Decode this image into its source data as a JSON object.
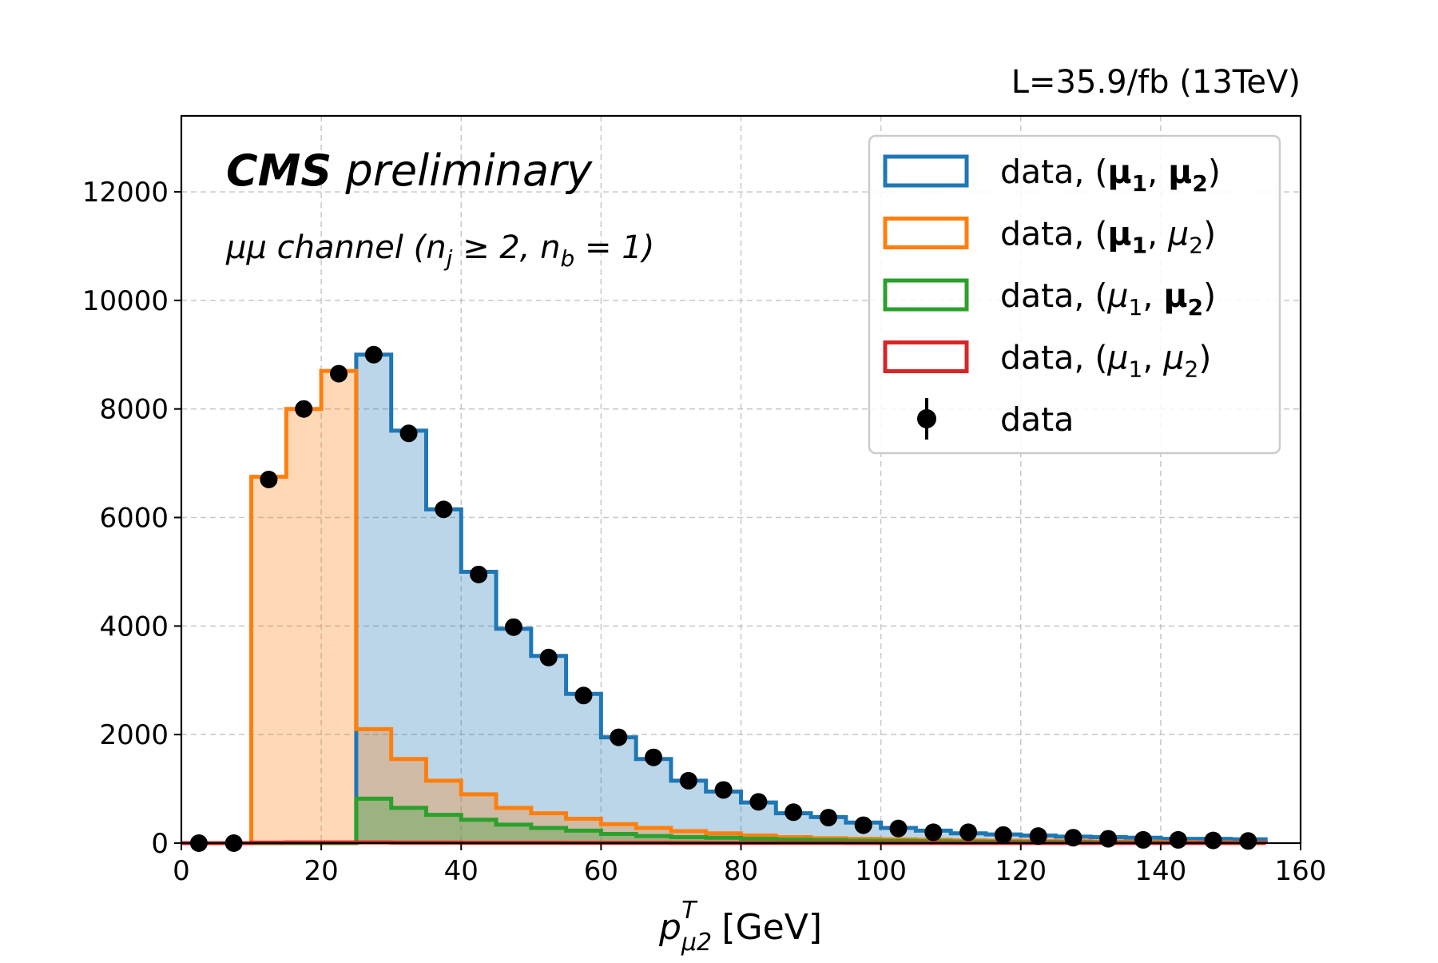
{
  "lumi_label": "L=35.9/fb (13TeV)",
  "cms_bold": "CMS",
  "cms_italic": "preliminary",
  "channel_label": {
    "pre": "μμ channel (n",
    "sub1": "j",
    "mid": " ≥ 2, n",
    "sub2": "b",
    "post": " = 1)"
  },
  "xlabel": {
    "base": "p",
    "sup": "T",
    "sub": "μ2",
    "unit": " [GeV]"
  },
  "legend": [
    {
      "key": "blue",
      "pre": "data, (",
      "a": "μ",
      "asub": "1",
      "abold": true,
      "b": "μ",
      "bsub": "2",
      "bbold": true,
      "post": ")"
    },
    {
      "key": "orange",
      "pre": "data, (",
      "a": "μ",
      "asub": "1",
      "abold": true,
      "b": "μ",
      "bsub": "2",
      "bbold": false,
      "post": ")"
    },
    {
      "key": "green",
      "pre": "data, (",
      "a": "μ",
      "asub": "1",
      "abold": false,
      "b": "μ",
      "bsub": "2",
      "bbold": true,
      "post": ")"
    },
    {
      "key": "red",
      "pre": "data, (",
      "a": "μ",
      "asub": "1",
      "abold": false,
      "b": "μ",
      "bsub": "2",
      "bbold": false,
      "post": ")"
    },
    {
      "key": "data",
      "label": "data"
    }
  ],
  "colors": {
    "blue": "#1f77b4",
    "orange": "#ff7f0e",
    "green": "#2ca02c",
    "red": "#d62728",
    "data": "#000000"
  },
  "chart_data": {
    "type": "bar",
    "histtype": "step-stacked",
    "bin_edges": [
      0,
      5,
      10,
      15,
      20,
      25,
      30,
      35,
      40,
      45,
      50,
      55,
      60,
      65,
      70,
      75,
      80,
      85,
      90,
      95,
      100,
      105,
      110,
      115,
      120,
      125,
      130,
      135,
      140,
      145,
      150,
      155
    ],
    "xlim": [
      0,
      160
    ],
    "ylim": [
      0,
      13400
    ],
    "xticks": [
      0,
      20,
      40,
      60,
      80,
      100,
      120,
      140,
      160
    ],
    "yticks": [
      0,
      2000,
      4000,
      6000,
      8000,
      10000,
      12000
    ],
    "grid": true,
    "legend_position": "top-right",
    "series": [
      {
        "name": "data, (μ1, μ2) [both bold]",
        "color_key": "blue",
        "values": [
          0,
          0,
          0,
          0,
          0,
          9000,
          7600,
          6150,
          5000,
          3950,
          3450,
          2750,
          1950,
          1550,
          1150,
          950,
          750,
          550,
          480,
          380,
          280,
          230,
          180,
          160,
          140,
          120,
          110,
          100,
          80,
          80,
          70
        ]
      },
      {
        "name": "data, (μ1 bold, μ2)",
        "color_key": "orange",
        "values": [
          0,
          0,
          6750,
          8000,
          8700,
          2100,
          1550,
          1150,
          900,
          650,
          550,
          450,
          350,
          280,
          220,
          180,
          140,
          110,
          90,
          80,
          70,
          60,
          50,
          45,
          40,
          35,
          30,
          25,
          20,
          15,
          10
        ]
      },
      {
        "name": "data, (μ1, μ2 bold)",
        "color_key": "green",
        "values": [
          0,
          0,
          0,
          0,
          0,
          820,
          650,
          520,
          430,
          340,
          280,
          230,
          170,
          130,
          110,
          100,
          80,
          65,
          55,
          45,
          40,
          35,
          30,
          25,
          20,
          18,
          15,
          12,
          10,
          8,
          6
        ]
      },
      {
        "name": "data, (μ1, μ2)",
        "color_key": "red",
        "values": [
          0,
          0,
          10,
          12,
          12,
          12,
          10,
          10,
          8,
          8,
          7,
          6,
          5,
          5,
          4,
          4,
          3,
          3,
          3,
          2,
          2,
          2,
          2,
          2,
          1,
          1,
          1,
          1,
          1,
          1,
          1
        ]
      }
    ],
    "points": {
      "name": "data",
      "x": [
        2.5,
        7.5,
        12.5,
        17.5,
        22.5,
        27.5,
        32.5,
        37.5,
        42.5,
        47.5,
        52.5,
        57.5,
        62.5,
        67.5,
        72.5,
        77.5,
        82.5,
        87.5,
        92.5,
        97.5,
        102.5,
        107.5,
        112.5,
        117.5,
        122.5,
        127.5,
        132.5,
        137.5,
        142.5,
        147.5,
        152.5
      ],
      "y": [
        0,
        0,
        6700,
        8000,
        8650,
        9000,
        7550,
        6150,
        4950,
        3980,
        3420,
        2720,
        1950,
        1580,
        1150,
        980,
        760,
        570,
        470,
        330,
        270,
        200,
        200,
        150,
        130,
        100,
        80,
        60,
        60,
        50,
        40
      ]
    }
  }
}
